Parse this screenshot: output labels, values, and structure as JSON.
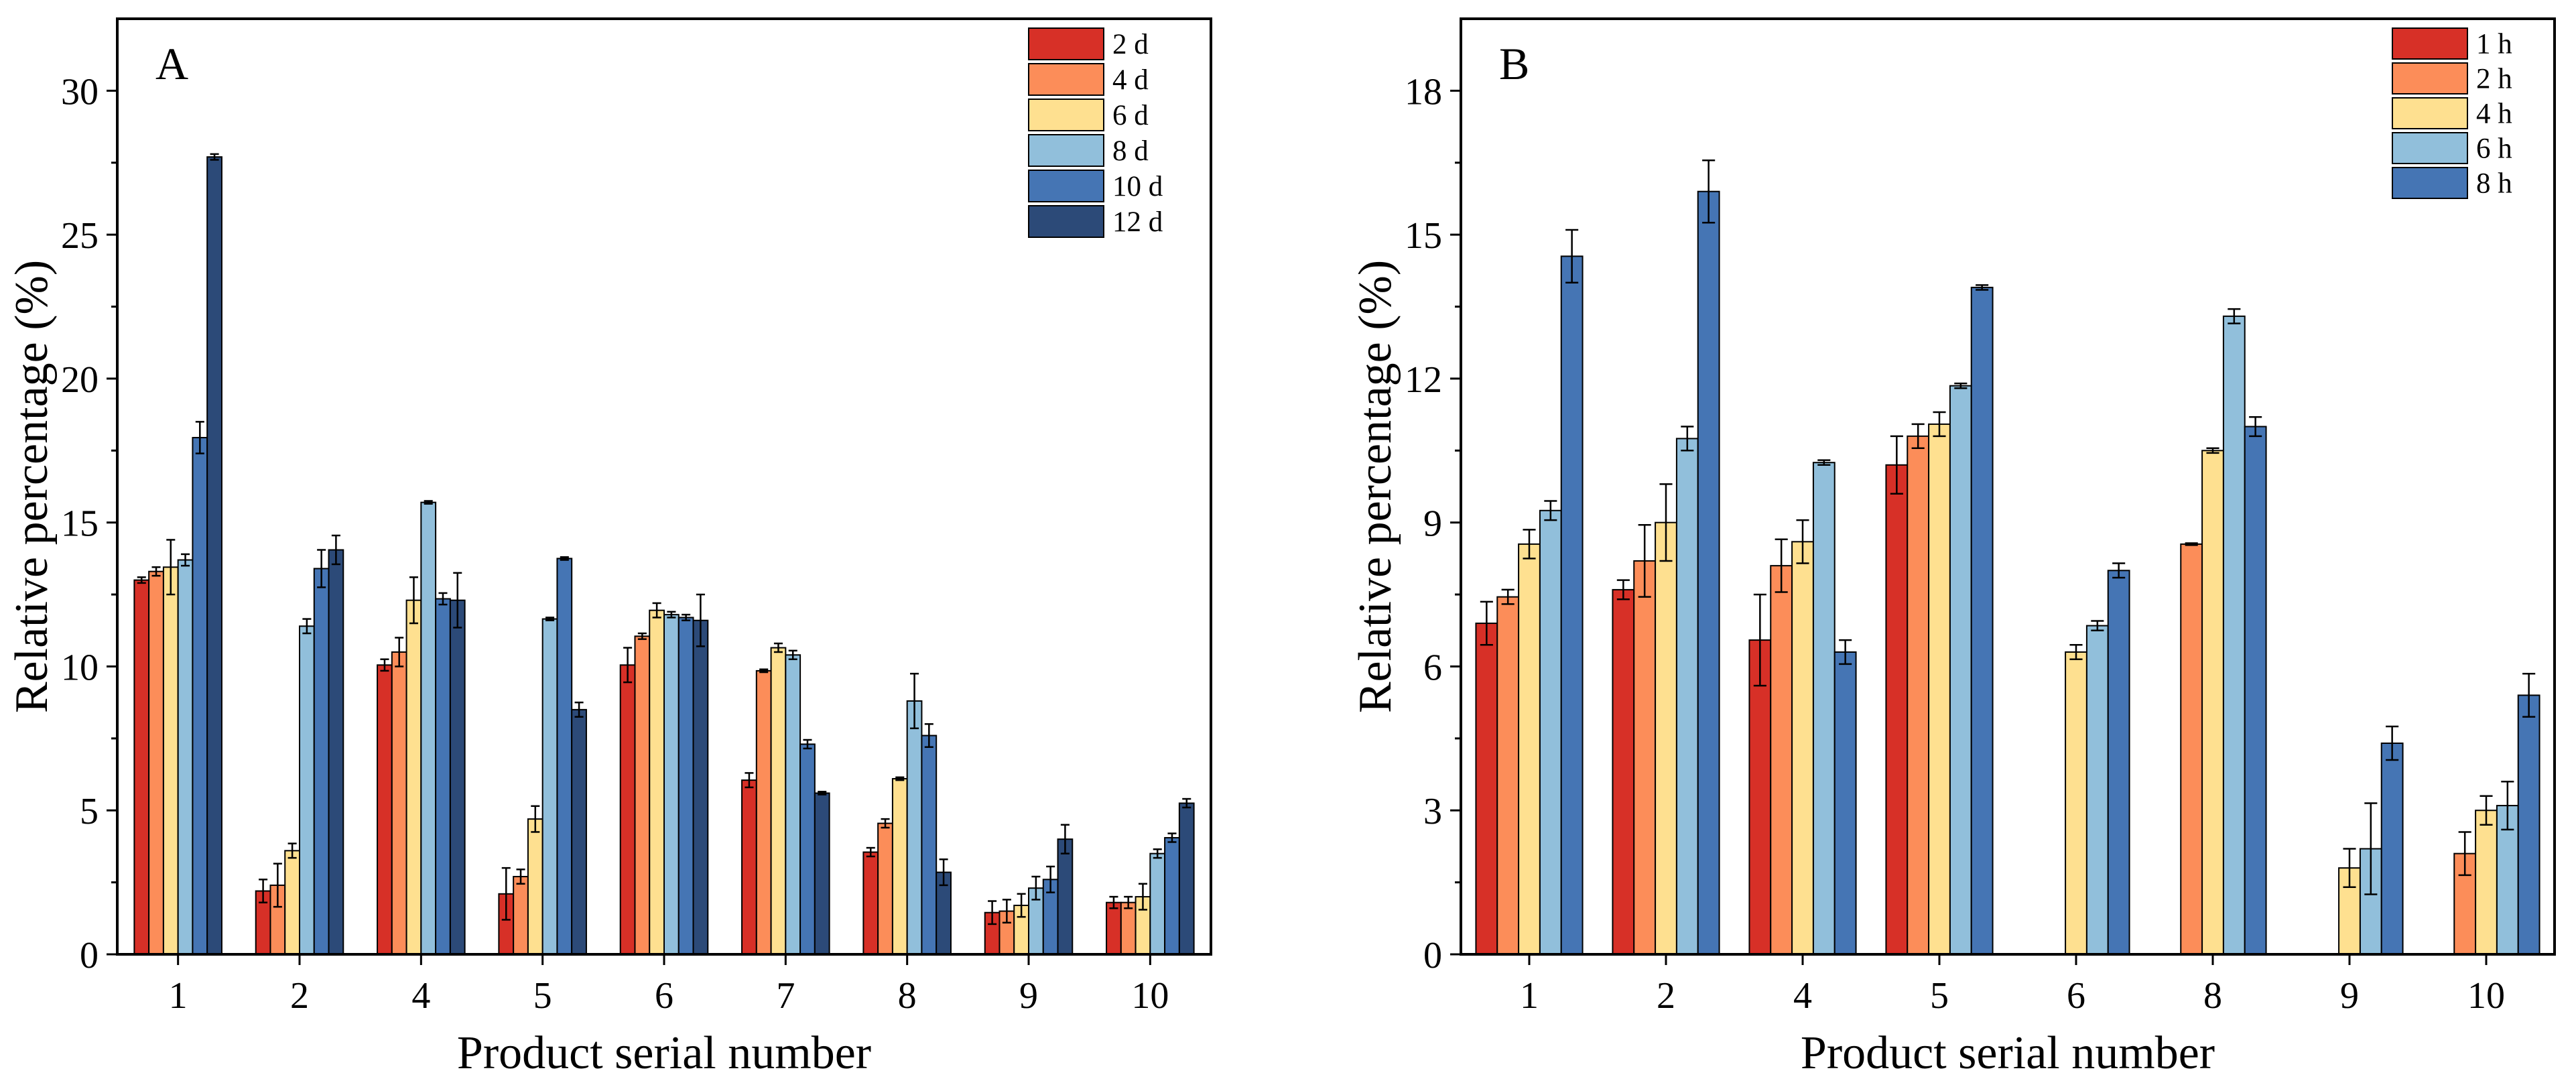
{
  "chart_data": [
    {
      "type": "bar",
      "panel_label": "A",
      "xlabel": "Product serial number",
      "ylabel": "Relative percentage (%)",
      "ylim": [
        0,
        32.5
      ],
      "yticks": [
        "0",
        "5",
        "10",
        "15",
        "20",
        "25",
        "30"
      ],
      "categories": [
        "1",
        "2",
        "4",
        "5",
        "6",
        "7",
        "8",
        "9",
        "10"
      ],
      "legend_position": "top-right",
      "series": [
        {
          "name": "2 d",
          "color": "#d73027",
          "values": [
            13.0,
            2.2,
            10.05,
            2.1,
            10.05,
            6.05,
            3.55,
            1.45,
            1.8
          ],
          "errors": [
            0.1,
            0.4,
            0.2,
            0.9,
            0.6,
            0.25,
            0.15,
            0.4,
            0.2
          ]
        },
        {
          "name": "4 d",
          "color": "#fc8d59",
          "values": [
            13.3,
            2.4,
            10.5,
            2.7,
            11.05,
            9.85,
            4.55,
            1.5,
            1.8
          ],
          "errors": [
            0.15,
            0.75,
            0.5,
            0.25,
            0.1,
            0.05,
            0.15,
            0.4,
            0.2
          ]
        },
        {
          "name": "6 d",
          "color": "#fee090",
          "values": [
            13.45,
            3.6,
            12.3,
            4.7,
            11.95,
            10.65,
            6.1,
            1.7,
            2.0
          ],
          "errors": [
            0.95,
            0.25,
            0.8,
            0.45,
            0.25,
            0.15,
            0.05,
            0.4,
            0.45
          ]
        },
        {
          "name": "8 d",
          "color": "#91bfdb",
          "values": [
            13.7,
            11.4,
            15.7,
            11.65,
            11.8,
            10.4,
            8.8,
            2.3,
            3.5
          ],
          "errors": [
            0.2,
            0.25,
            0.05,
            0.05,
            0.1,
            0.15,
            0.95,
            0.4,
            0.15
          ]
        },
        {
          "name": "10 d",
          "color": "#4575b4",
          "values": [
            17.95,
            13.4,
            12.35,
            13.75,
            11.7,
            7.3,
            7.6,
            2.6,
            4.05
          ],
          "errors": [
            0.55,
            0.65,
            0.2,
            0.05,
            0.1,
            0.15,
            0.4,
            0.45,
            0.15
          ]
        },
        {
          "name": "12 d",
          "color": "#2c4a78",
          "values": [
            27.7,
            14.05,
            12.3,
            8.5,
            11.6,
            5.6,
            2.85,
            4.0,
            5.25
          ],
          "errors": [
            0.1,
            0.5,
            0.95,
            0.25,
            0.9,
            0.05,
            0.45,
            0.5,
            0.15
          ]
        }
      ]
    },
    {
      "type": "bar",
      "panel_label": "B",
      "xlabel": "Product serial number",
      "ylabel": "Relative percentage (%)",
      "ylim": [
        0,
        19.5
      ],
      "yticks": [
        "0",
        "3",
        "6",
        "9",
        "12",
        "15",
        "18"
      ],
      "categories": [
        "1",
        "2",
        "4",
        "5",
        "6",
        "8",
        "9",
        "10"
      ],
      "legend_position": "top-right",
      "series": [
        {
          "name": "1 h",
          "color": "#d73027",
          "values": [
            6.9,
            7.6,
            6.55,
            10.2,
            null,
            null,
            null,
            null
          ],
          "errors": [
            0.45,
            0.2,
            0.95,
            0.6,
            0,
            0,
            0,
            0
          ]
        },
        {
          "name": "2 h",
          "color": "#fc8d59",
          "values": [
            7.45,
            8.2,
            8.1,
            10.8,
            null,
            8.55,
            null,
            2.1
          ],
          "errors": [
            0.15,
            0.75,
            0.55,
            0.25,
            0,
            0.02,
            0,
            0.45
          ]
        },
        {
          "name": "4 h",
          "color": "#fee090",
          "values": [
            8.55,
            9.0,
            8.6,
            11.05,
            6.3,
            10.5,
            1.8,
            3.0
          ],
          "errors": [
            0.3,
            0.8,
            0.45,
            0.25,
            0.15,
            0.05,
            0.4,
            0.3
          ]
        },
        {
          "name": "6 h",
          "color": "#91bfdb",
          "values": [
            9.25,
            10.75,
            10.25,
            11.85,
            6.85,
            13.3,
            2.2,
            3.1
          ],
          "errors": [
            0.2,
            0.25,
            0.05,
            0.05,
            0.1,
            0.15,
            0.95,
            0.5
          ]
        },
        {
          "name": "8 h",
          "color": "#4575b4",
          "values": [
            14.55,
            15.9,
            6.3,
            13.9,
            8.0,
            11.0,
            4.4,
            5.4
          ],
          "errors": [
            0.55,
            0.65,
            0.25,
            0.05,
            0.15,
            0.2,
            0.35,
            0.45
          ]
        }
      ]
    }
  ]
}
